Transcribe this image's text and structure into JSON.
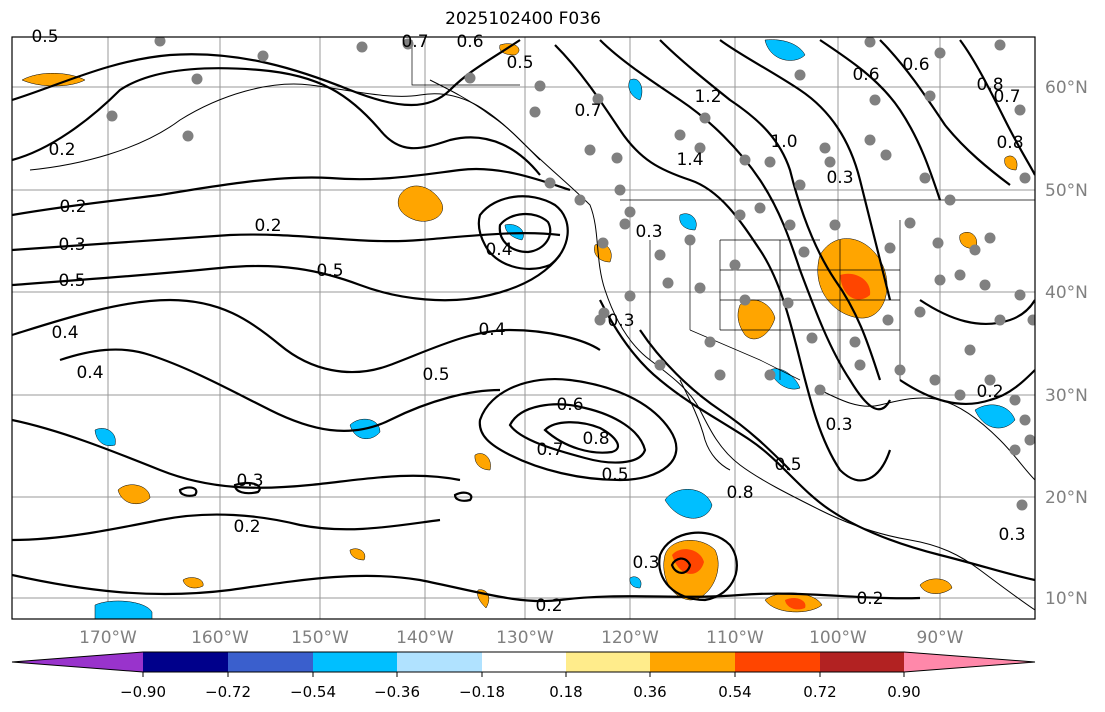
{
  "title": "2025102400 F036",
  "map": {
    "lon_ticks": [
      "170°W",
      "160°W",
      "150°W",
      "140°W",
      "130°W",
      "120°W",
      "110°W",
      "100°W",
      "90°W"
    ],
    "lat_ticks": [
      "60°N",
      "50°N",
      "40°N",
      "30°N",
      "20°N",
      "10°N"
    ],
    "contour_labels": [
      "0.5",
      "0.7",
      "0.6",
      "0.2",
      "0.2",
      "0.3",
      "0.5",
      "0.4",
      "0.4",
      "0.2",
      "0.5",
      "0.4",
      "0.4",
      "0.5",
      "0.3",
      "0.6",
      "0.8",
      "0.7",
      "0.5",
      "0.3",
      "0.2",
      "0.3",
      "0.2",
      "0.2",
      "0.5",
      "0.7",
      "1.4",
      "1.2",
      "1.0",
      "0.6",
      "0.6",
      "0.8",
      "0.7",
      "0.8",
      "0.3",
      "0.3",
      "0.5",
      "0.8",
      "0.3",
      "0.2",
      "0.3"
    ]
  },
  "colorbar": {
    "colors": [
      "#9933cc",
      "#00008b",
      "#3a5fcd",
      "#00bfff",
      "#b0e2ff",
      "#ffffff",
      "#ffec8b",
      "#ffa500",
      "#ff4500",
      "#b22222",
      "#ff88aa"
    ],
    "labels": [
      "−0.90",
      "−0.72",
      "−0.54",
      "−0.36",
      "−0.18",
      "0.18",
      "0.36",
      "0.54",
      "0.72",
      "0.90"
    ]
  }
}
